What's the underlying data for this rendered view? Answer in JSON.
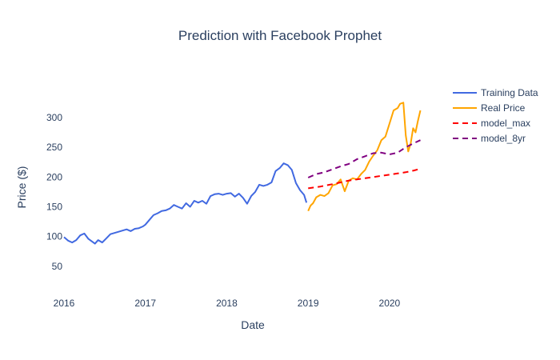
{
  "chart_data": {
    "type": "line",
    "title": "Prediction with Facebook Prophet",
    "xlabel": "Date",
    "ylabel": "Price ($)",
    "xlim": [
      2016.0,
      2020.65
    ],
    "ylim": [
      0,
      390
    ],
    "x_ticks": [
      2016,
      2017,
      2018,
      2019,
      2020
    ],
    "y_ticks": [
      50,
      100,
      150,
      200,
      250,
      300
    ],
    "grid": false,
    "legend_position": "top-right",
    "series": [
      {
        "name": "Training Data",
        "color": "#4169e1",
        "dash": "solid",
        "x": [
          2016.0,
          2016.05,
          2016.1,
          2016.15,
          2016.2,
          2016.25,
          2016.3,
          2016.34,
          2016.38,
          2016.42,
          2016.47,
          2016.52,
          2016.57,
          2016.62,
          2016.67,
          2016.72,
          2016.77,
          2016.82,
          2016.87,
          2016.92,
          2016.97,
          2017.0,
          2017.05,
          2017.1,
          2017.15,
          2017.2,
          2017.25,
          2017.3,
          2017.35,
          2017.4,
          2017.45,
          2017.5,
          2017.55,
          2017.6,
          2017.65,
          2017.7,
          2017.75,
          2017.8,
          2017.85,
          2017.9,
          2017.95,
          2018.0,
          2018.05,
          2018.1,
          2018.15,
          2018.2,
          2018.25,
          2018.3,
          2018.35,
          2018.4,
          2018.45,
          2018.5,
          2018.55,
          2018.6,
          2018.65,
          2018.7,
          2018.75,
          2018.8,
          2018.85,
          2018.9,
          2018.95,
          2018.98
        ],
        "values": [
          99,
          93,
          90,
          94,
          102,
          105,
          96,
          92,
          88,
          94,
          90,
          97,
          104,
          106,
          108,
          110,
          112,
          109,
          113,
          114,
          117,
          120,
          128,
          136,
          139,
          143,
          144,
          147,
          153,
          150,
          147,
          156,
          150,
          160,
          157,
          160,
          155,
          168,
          171,
          172,
          170,
          172,
          173,
          167,
          172,
          165,
          155,
          168,
          175,
          187,
          185,
          187,
          191,
          210,
          215,
          223,
          220,
          212,
          190,
          178,
          170,
          157
        ]
      },
      {
        "name": "Real Price",
        "color": "#ffa500",
        "dash": "solid",
        "x": [
          2019.0,
          2019.03,
          2019.06,
          2019.1,
          2019.15,
          2019.2,
          2019.25,
          2019.3,
          2019.35,
          2019.4,
          2019.45,
          2019.5,
          2019.55,
          2019.6,
          2019.65,
          2019.7,
          2019.75,
          2019.8,
          2019.85,
          2019.9,
          2019.95,
          2020.0,
          2020.05,
          2020.1,
          2020.13,
          2020.17,
          2020.2,
          2020.23,
          2020.26,
          2020.29,
          2020.32,
          2020.35,
          2020.38
        ],
        "values": [
          143,
          152,
          156,
          166,
          170,
          168,
          173,
          186,
          188,
          196,
          176,
          194,
          198,
          196,
          205,
          212,
          226,
          236,
          245,
          262,
          268,
          290,
          312,
          316,
          323,
          325,
          270,
          243,
          256,
          282,
          275,
          295,
          312
        ]
      },
      {
        "name": "model_max",
        "color": "#ff0000",
        "dash": "dashed",
        "x": [
          2019.0,
          2019.15,
          2019.3,
          2019.5,
          2019.7,
          2019.9,
          2020.0,
          2020.1,
          2020.2,
          2020.3,
          2020.38
        ],
        "values": [
          181,
          184,
          188,
          194,
          198,
          202,
          204,
          206,
          208,
          211,
          214
        ]
      },
      {
        "name": "model_8yr",
        "color": "#800080",
        "dash": "dashed",
        "x": [
          2019.0,
          2019.1,
          2019.2,
          2019.3,
          2019.4,
          2019.5,
          2019.6,
          2019.7,
          2019.8,
          2019.9,
          2020.0,
          2020.1,
          2020.2,
          2020.3,
          2020.38
        ],
        "values": [
          199,
          205,
          208,
          213,
          218,
          222,
          230,
          235,
          240,
          241,
          238,
          241,
          250,
          257,
          262
        ]
      }
    ]
  }
}
